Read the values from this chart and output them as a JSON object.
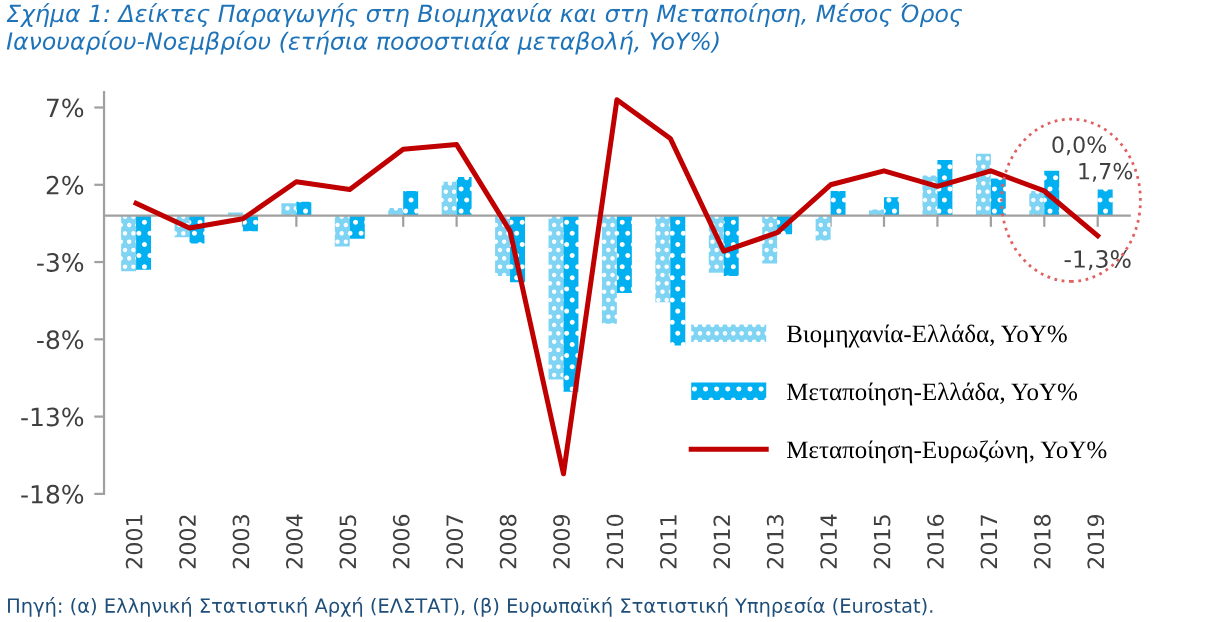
{
  "chart_data": {
    "type": "bar",
    "title": "Σχήμα 1: Δείκτες Παραγωγής στη Βιομηχανία και στη Μεταποίηση, Μέσος Όρος Ιανουαρίου-Νοεμβρίου (ετήσια ποσοστιαία μεταβολή, YoY%)",
    "categories": [
      "2001",
      "2002",
      "2003",
      "2004",
      "2005",
      "2006",
      "2007",
      "2008",
      "2009",
      "2010",
      "2011",
      "2012",
      "2013",
      "2014",
      "2015",
      "2016",
      "2017",
      "2018",
      "2019"
    ],
    "series": [
      {
        "name": "Βιομηχανία-Ελλάδα, YoY%",
        "color": "#7fd4f4",
        "values": [
          -3.6,
          -1.4,
          0.2,
          0.8,
          -2.0,
          0.5,
          2.2,
          -3.9,
          -10.6,
          -7.0,
          -5.6,
          -3.7,
          -3.1,
          -1.6,
          0.4,
          2.6,
          4.0,
          1.6,
          0.0
        ],
        "value_labels": [
          null,
          null,
          null,
          null,
          null,
          null,
          null,
          null,
          null,
          null,
          null,
          null,
          null,
          null,
          null,
          null,
          null,
          null,
          "0,0%"
        ]
      },
      {
        "name": "Μεταποίηση-Ελλάδα, YoY%",
        "color": "#00b0f0",
        "values": [
          -3.5,
          -1.8,
          -1.0,
          0.9,
          -1.5,
          1.6,
          2.5,
          -4.3,
          -11.4,
          -5.0,
          -8.4,
          -3.9,
          -1.2,
          1.6,
          1.2,
          3.6,
          2.4,
          2.9,
          1.7
        ],
        "value_labels": [
          null,
          null,
          null,
          null,
          null,
          null,
          null,
          null,
          null,
          null,
          null,
          null,
          null,
          null,
          null,
          null,
          null,
          null,
          "1,7%"
        ]
      },
      {
        "name": "Μεταποίηση-Ευρωζώνη, YoY%",
        "type": "line",
        "color": "#c00000",
        "values": [
          0.8,
          -0.8,
          -0.2,
          2.2,
          1.7,
          4.3,
          4.6,
          -1.0,
          -16.7,
          7.5,
          5.0,
          -2.3,
          -1.1,
          2.0,
          2.9,
          1.9,
          2.9,
          1.6,
          -1.3
        ],
        "value_labels": [
          null,
          null,
          null,
          null,
          null,
          null,
          null,
          null,
          null,
          null,
          null,
          null,
          null,
          null,
          null,
          null,
          null,
          null,
          "-1,3%"
        ]
      }
    ],
    "ylim": [
      -18,
      8
    ],
    "yticks": [
      {
        "value": 7,
        "label": "7%"
      },
      {
        "value": 2,
        "label": "2%"
      },
      {
        "value": -3,
        "label": "-3%"
      },
      {
        "value": -8,
        "label": "-8%"
      },
      {
        "value": -13,
        "label": "-13%"
      },
      {
        "value": -18,
        "label": "-18%"
      }
    ],
    "grid": false,
    "legend": "bottom right",
    "marker": "none",
    "line_style": "solid",
    "annotations": [
      "Πηγή: (α) Ελληνική Στατιστική Αρχή (ΕΛΣΤΑΤ), (β) Ευρωπαϊκή Στατιστική Υπηρεσία (Eurostat)."
    ]
  }
}
